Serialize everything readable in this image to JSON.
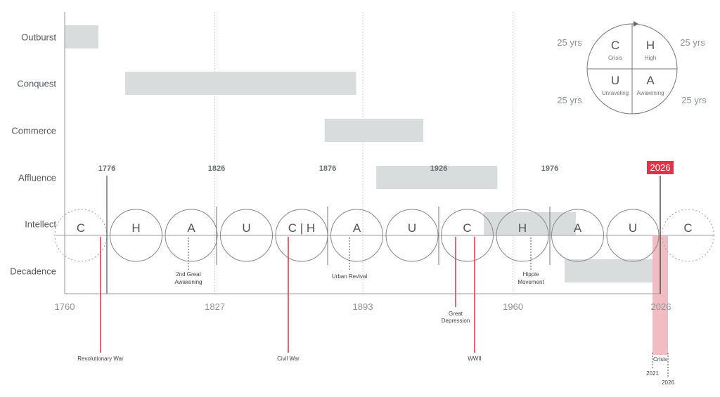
{
  "stages": [
    {
      "label": "Outburst",
      "start": 1760,
      "end": 1775
    },
    {
      "label": "Conquest",
      "start": 1787,
      "end": 1890
    },
    {
      "label": "Commerce",
      "start": 1876,
      "end": 1920
    },
    {
      "label": "Affluence",
      "start": 1899,
      "end": 1953
    },
    {
      "label": "Intellect",
      "start": 1947,
      "end": 1988
    },
    {
      "label": "Decadence",
      "start": 1983,
      "end": 2026
    }
  ],
  "axis_years": [
    "1760",
    "1827",
    "1893",
    "1960",
    "2026"
  ],
  "cycle_years": [
    "1776",
    "1826",
    "1876",
    "1926",
    "1976"
  ],
  "current_year": "2026",
  "turnings": [
    {
      "letter": "C",
      "dashed": true
    },
    {
      "letter": "H"
    },
    {
      "letter": "A"
    },
    {
      "letter": "U"
    },
    {
      "letter": "C | H"
    },
    {
      "letter": "A"
    },
    {
      "letter": "U"
    },
    {
      "letter": "C"
    },
    {
      "letter": "H"
    },
    {
      "letter": "A"
    },
    {
      "letter": "U"
    },
    {
      "letter": "C",
      "dashed": true
    }
  ],
  "events": [
    {
      "label": "Revolutionary War",
      "year": 1776,
      "kind": "red"
    },
    {
      "label": "Civil War",
      "year": 1861,
      "kind": "red"
    },
    {
      "label": "WWII",
      "year": 1941,
      "kind": "red"
    },
    {
      "label": "Great Depression",
      "year": 1929,
      "kind": "red"
    },
    {
      "label": "2nd Great Awakening",
      "year": 1815,
      "kind": "dashed"
    },
    {
      "label": "Urban Revival",
      "year": 1884,
      "kind": "dashed"
    },
    {
      "label": "Hippie Movement",
      "year": 1967,
      "kind": "dashed"
    }
  ],
  "crisis_band": {
    "label": "Crisis",
    "start": "2021",
    "end": "2026"
  },
  "legend": {
    "quadrants": [
      {
        "letter": "C",
        "name": "Crisis"
      },
      {
        "letter": "H",
        "name": "High"
      },
      {
        "letter": "U",
        "name": "Unraveling"
      },
      {
        "letter": "A",
        "name": "Awakening"
      }
    ],
    "durations": [
      "25 yrs",
      "25 yrs",
      "25 yrs",
      "25 yrs"
    ]
  },
  "colors": {
    "bar": "#d9dcdd",
    "line": "#777777",
    "red": "#e0334a",
    "red_fill": "#f2bdc2",
    "text": "#555a60",
    "muted": "#8e9398",
    "cycle_year": "#6b7177"
  }
}
